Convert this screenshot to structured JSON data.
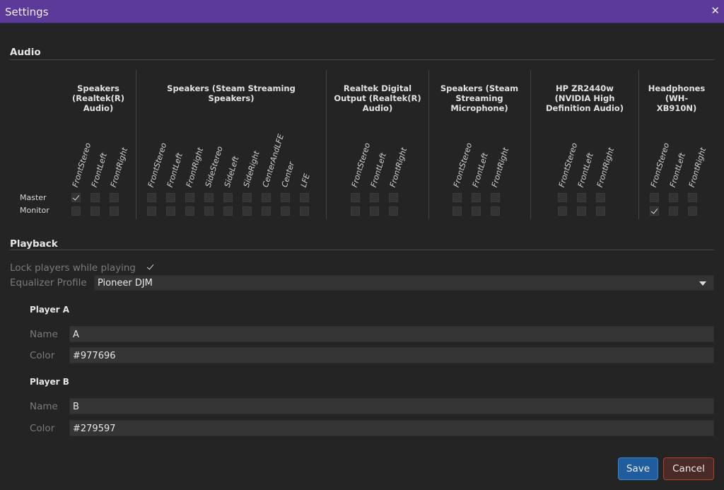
{
  "window": {
    "title": "Settings",
    "close_glyph": "✕"
  },
  "audio": {
    "title": "Audio",
    "row_labels": [
      "Master",
      "Monitor"
    ],
    "devices": [
      {
        "name": "Speakers\n(Realtek(R)\nAudio)",
        "channels": [
          "FrontStereo",
          "FrontLeft",
          "FrontRight"
        ]
      },
      {
        "name": "Speakers (Steam Streaming Speakers)",
        "channels": [
          "FrontStereo",
          "FrontLeft",
          "FrontRight",
          "SideStereo",
          "SideLeft",
          "SideRight",
          "CenterAndLFE",
          "Center",
          "LFE"
        ]
      },
      {
        "name": "Realtek Digital\nOutput (Realtek(R)\nAudio)",
        "channels": [
          "FrontStereo",
          "FrontLeft",
          "FrontRight"
        ]
      },
      {
        "name": "Speakers (Steam\nStreaming\nMicrophone)",
        "channels": [
          "FrontStereo",
          "FrontLeft",
          "FrontRight"
        ]
      },
      {
        "name": "HP ZR2440w\n(NVIDIA High\nDefinition Audio)",
        "channels": [
          "FrontStereo",
          "FrontLeft",
          "FrontRight"
        ]
      },
      {
        "name": "Headphones\n(WH-\nXB910N)",
        "channels": [
          "FrontStereo",
          "FrontLeft",
          "FrontRight"
        ]
      }
    ],
    "checked": {
      "master": [
        [
          0,
          0
        ]
      ],
      "monitor": [
        [
          5,
          0
        ]
      ]
    }
  },
  "playback": {
    "title": "Playback",
    "lock_label": "Lock players while playing",
    "lock_checked": true,
    "eq_label": "Equalizer Profile",
    "eq_value": "Pioneer DJM",
    "players": [
      {
        "title": "Player A",
        "name_label": "Name",
        "name": "A",
        "color_label": "Color",
        "color": "#977696"
      },
      {
        "title": "Player B",
        "name_label": "Name",
        "name": "B",
        "color_label": "Color",
        "color": "#279597"
      }
    ]
  },
  "buttons": {
    "save": "Save",
    "cancel": "Cancel"
  },
  "colors": {
    "titlebar": "#5b3a99",
    "save": "#1f5d9e",
    "cancel_border": "#b0402d"
  }
}
